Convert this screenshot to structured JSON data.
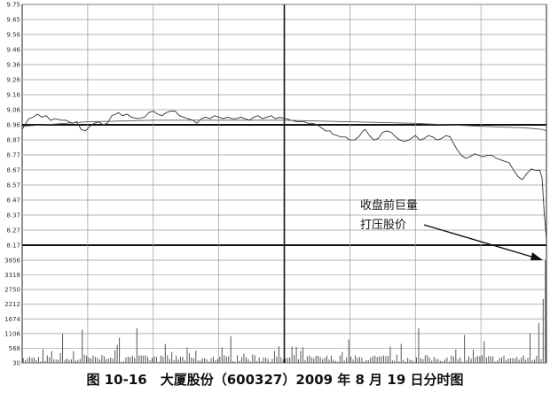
{
  "caption": "图 10-16　大厦股份（600327）2009 年 8 月 19 日分时图",
  "chart_data": {
    "type": "line",
    "price_axis": {
      "ticks": [
        "9.75",
        "9.65",
        "9.56",
        "9.46",
        "9.36",
        "9.26",
        "9.16",
        "9.06",
        "8.96",
        "8.87",
        "8.77",
        "8.67",
        "8.57",
        "8.47",
        "8.37",
        "8.27",
        "8.17"
      ],
      "reference_price": 8.96,
      "min": 8.17,
      "max": 9.75
    },
    "volume_axis": {
      "ticks": [
        "3856",
        "3318",
        "2750",
        "2212",
        "1674",
        "1106",
        "568",
        "30"
      ],
      "max": 3856
    },
    "x_minutes_total": 240,
    "series": [
      {
        "values": [
          [
            0,
            8.93
          ],
          [
            3,
            9.0
          ],
          [
            5,
            9.01
          ],
          [
            7,
            9.03
          ],
          [
            9,
            9.01
          ],
          [
            11,
            9.02
          ],
          [
            13,
            8.99
          ],
          [
            15,
            9.0
          ],
          [
            18,
            8.99
          ],
          [
            20,
            8.99
          ],
          [
            23,
            8.97
          ],
          [
            25,
            8.98
          ],
          [
            27,
            8.93
          ],
          [
            29,
            8.92
          ],
          [
            31,
            8.95
          ],
          [
            33,
            8.97
          ],
          [
            35,
            8.98
          ],
          [
            37,
            8.96
          ],
          [
            39,
            8.97
          ],
          [
            41,
            9.02
          ],
          [
            43,
            9.03
          ],
          [
            44,
            9.04
          ],
          [
            46,
            9.02
          ],
          [
            48,
            9.03
          ],
          [
            50,
            9.01
          ],
          [
            53,
            9.0
          ],
          [
            56,
            9.01
          ],
          [
            58,
            9.04
          ],
          [
            60,
            9.05
          ],
          [
            62,
            9.03
          ],
          [
            64,
            9.02
          ],
          [
            66,
            9.04
          ],
          [
            68,
            9.05
          ],
          [
            70,
            9.05
          ],
          [
            72,
            9.02
          ],
          [
            74,
            9.01
          ],
          [
            76,
            9.0
          ],
          [
            78,
            8.99
          ],
          [
            80,
            8.97
          ],
          [
            82,
            9.0
          ],
          [
            84,
            9.01
          ],
          [
            86,
            9.0
          ],
          [
            88,
            9.02
          ],
          [
            90,
            9.01
          ],
          [
            92,
            9.0
          ],
          [
            94,
            9.01
          ],
          [
            96,
            9.0
          ],
          [
            98,
            9.0
          ],
          [
            100,
            9.01
          ],
          [
            102,
            9.0
          ],
          [
            104,
            8.99
          ],
          [
            106,
            9.01
          ],
          [
            108,
            9.02
          ],
          [
            110,
            9.0
          ],
          [
            112,
            9.01
          ],
          [
            114,
            9.02
          ],
          [
            116,
            9.0
          ],
          [
            118,
            9.01
          ],
          [
            120,
            9.0
          ],
          [
            121,
            9.0
          ],
          [
            123,
            8.99
          ],
          [
            126,
            8.98
          ],
          [
            129,
            8.98
          ],
          [
            131,
            8.97
          ],
          [
            133,
            8.97
          ],
          [
            135,
            8.96
          ],
          [
            137,
            8.94
          ],
          [
            139,
            8.92
          ],
          [
            141,
            8.92
          ],
          [
            142,
            8.9
          ],
          [
            144,
            8.89
          ],
          [
            146,
            8.88
          ],
          [
            148,
            8.88
          ],
          [
            150,
            8.86
          ],
          [
            152,
            8.86
          ],
          [
            154,
            8.88
          ],
          [
            156,
            8.92
          ],
          [
            157,
            8.93
          ],
          [
            159,
            8.89
          ],
          [
            161,
            8.86
          ],
          [
            163,
            8.87
          ],
          [
            165,
            8.91
          ],
          [
            167,
            8.92
          ],
          [
            169,
            8.91
          ],
          [
            171,
            8.88
          ],
          [
            173,
            8.86
          ],
          [
            175,
            8.85
          ],
          [
            177,
            8.86
          ],
          [
            179,
            8.88
          ],
          [
            180,
            8.89
          ],
          [
            182,
            8.86
          ],
          [
            184,
            8.87
          ],
          [
            186,
            8.89
          ],
          [
            188,
            8.88
          ],
          [
            190,
            8.86
          ],
          [
            192,
            8.87
          ],
          [
            194,
            8.89
          ],
          [
            196,
            8.88
          ],
          [
            197,
            8.85
          ],
          [
            199,
            8.8
          ],
          [
            201,
            8.76
          ],
          [
            203,
            8.74
          ],
          [
            205,
            8.75
          ],
          [
            207,
            8.77
          ],
          [
            209,
            8.76
          ],
          [
            211,
            8.75
          ],
          [
            213,
            8.76
          ],
          [
            215,
            8.76
          ],
          [
            217,
            8.74
          ],
          [
            219,
            8.73
          ],
          [
            221,
            8.72
          ],
          [
            223,
            8.71
          ],
          [
            225,
            8.66
          ],
          [
            227,
            8.62
          ],
          [
            229,
            8.6
          ],
          [
            231,
            8.64
          ],
          [
            233,
            8.67
          ],
          [
            235,
            8.66
          ],
          [
            237,
            8.66
          ],
          [
            238,
            8.61
          ],
          [
            239,
            8.38
          ],
          [
            240,
            8.21
          ]
        ]
      },
      {
        "values": [
          [
            0,
            8.95
          ],
          [
            30,
            8.98
          ],
          [
            60,
            8.99
          ],
          [
            90,
            8.99
          ],
          [
            120,
            8.99
          ],
          [
            150,
            8.98
          ],
          [
            180,
            8.97
          ],
          [
            210,
            8.95
          ],
          [
            230,
            8.94
          ],
          [
            238,
            8.93
          ],
          [
            240,
            8.92
          ]
        ]
      }
    ],
    "annotation": [
      "收盘前巨量",
      "打压股价"
    ]
  }
}
